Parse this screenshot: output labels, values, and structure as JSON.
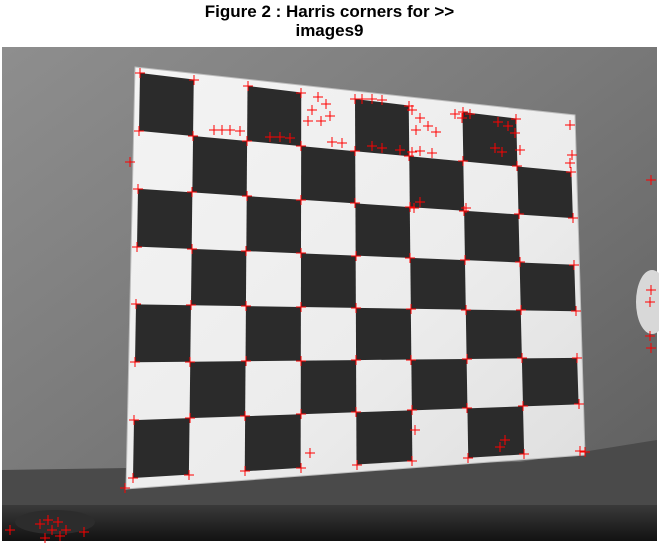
{
  "figure": {
    "title_line1": "Figure 2 : Harris corners for >>",
    "title_line2": "images9"
  },
  "image": {
    "content": "grayscale photograph of a checkerboard calibration pattern",
    "board_columns": 8,
    "board_rows": 7,
    "marker_color": "#ff0000",
    "marker_symbol": "+"
  }
}
